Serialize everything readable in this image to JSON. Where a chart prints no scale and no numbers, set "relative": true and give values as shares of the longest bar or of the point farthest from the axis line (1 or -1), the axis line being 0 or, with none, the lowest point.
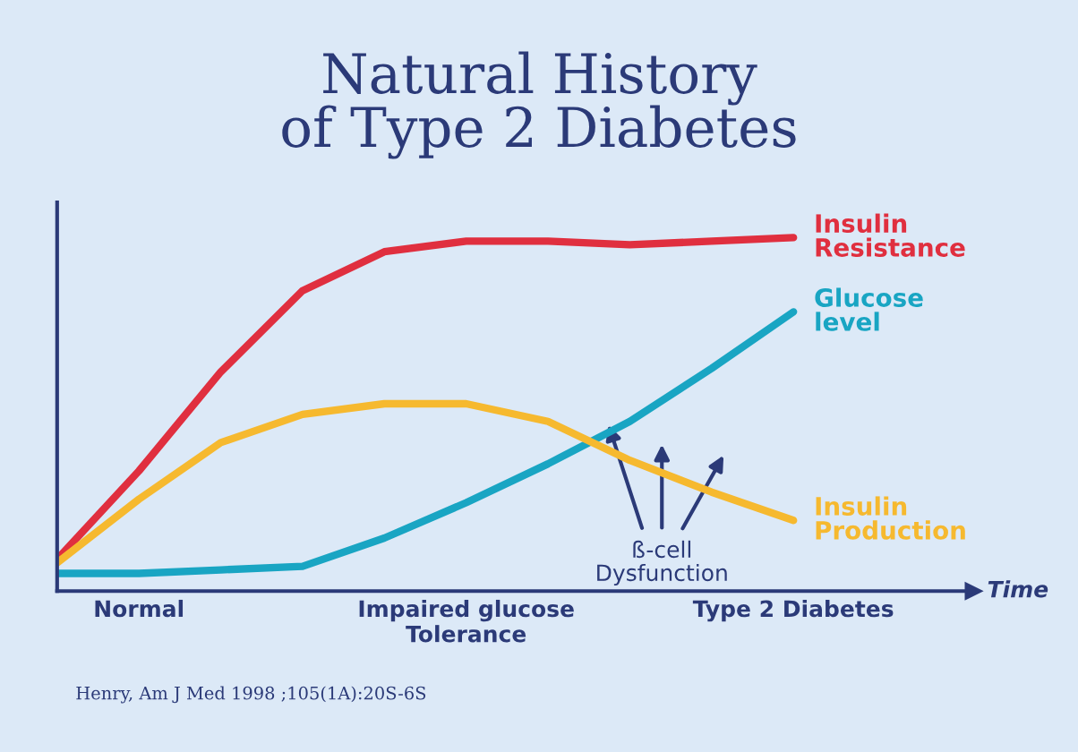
{
  "chart_data": {
    "type": "line",
    "title": "Natural History\nof Type 2 Diabetes",
    "xlabel": "Time",
    "relative": true,
    "tick_labels": "x",
    "grid": false,
    "legend": false,
    "marker": "none",
    "line_style": "solid",
    "categories": [
      null,
      "Normal",
      null,
      null,
      null,
      "Impaired glucose\nTolerance",
      null,
      null,
      null,
      "Type 2 Diabetes"
    ],
    "series": [
      {
        "name": "Insulin\nResistance",
        "color": "#e02f3f",
        "values": [
          0.09,
          0.34,
          0.62,
          0.85,
          0.96,
          0.99,
          0.99,
          0.98,
          0.99,
          1
        ]
      },
      {
        "name": "Glucose\nlevel",
        "color": "#19a5c3",
        "values": [
          0.05,
          0.05,
          0.06,
          0.07,
          0.15,
          0.25,
          0.36,
          0.48,
          0.63,
          0.79
        ]
      },
      {
        "name": "Insulin\nProduction",
        "color": "#f6b92f",
        "values": [
          0.08,
          0.26,
          0.42,
          0.5,
          0.53,
          0.53,
          0.48,
          0.37,
          0.28,
          0.2
        ]
      }
    ],
    "annotations": [
      "ß-cell\nDysfunction",
      "Henry, Am J Med 1998 ;105(1A):20S-6S"
    ]
  }
}
